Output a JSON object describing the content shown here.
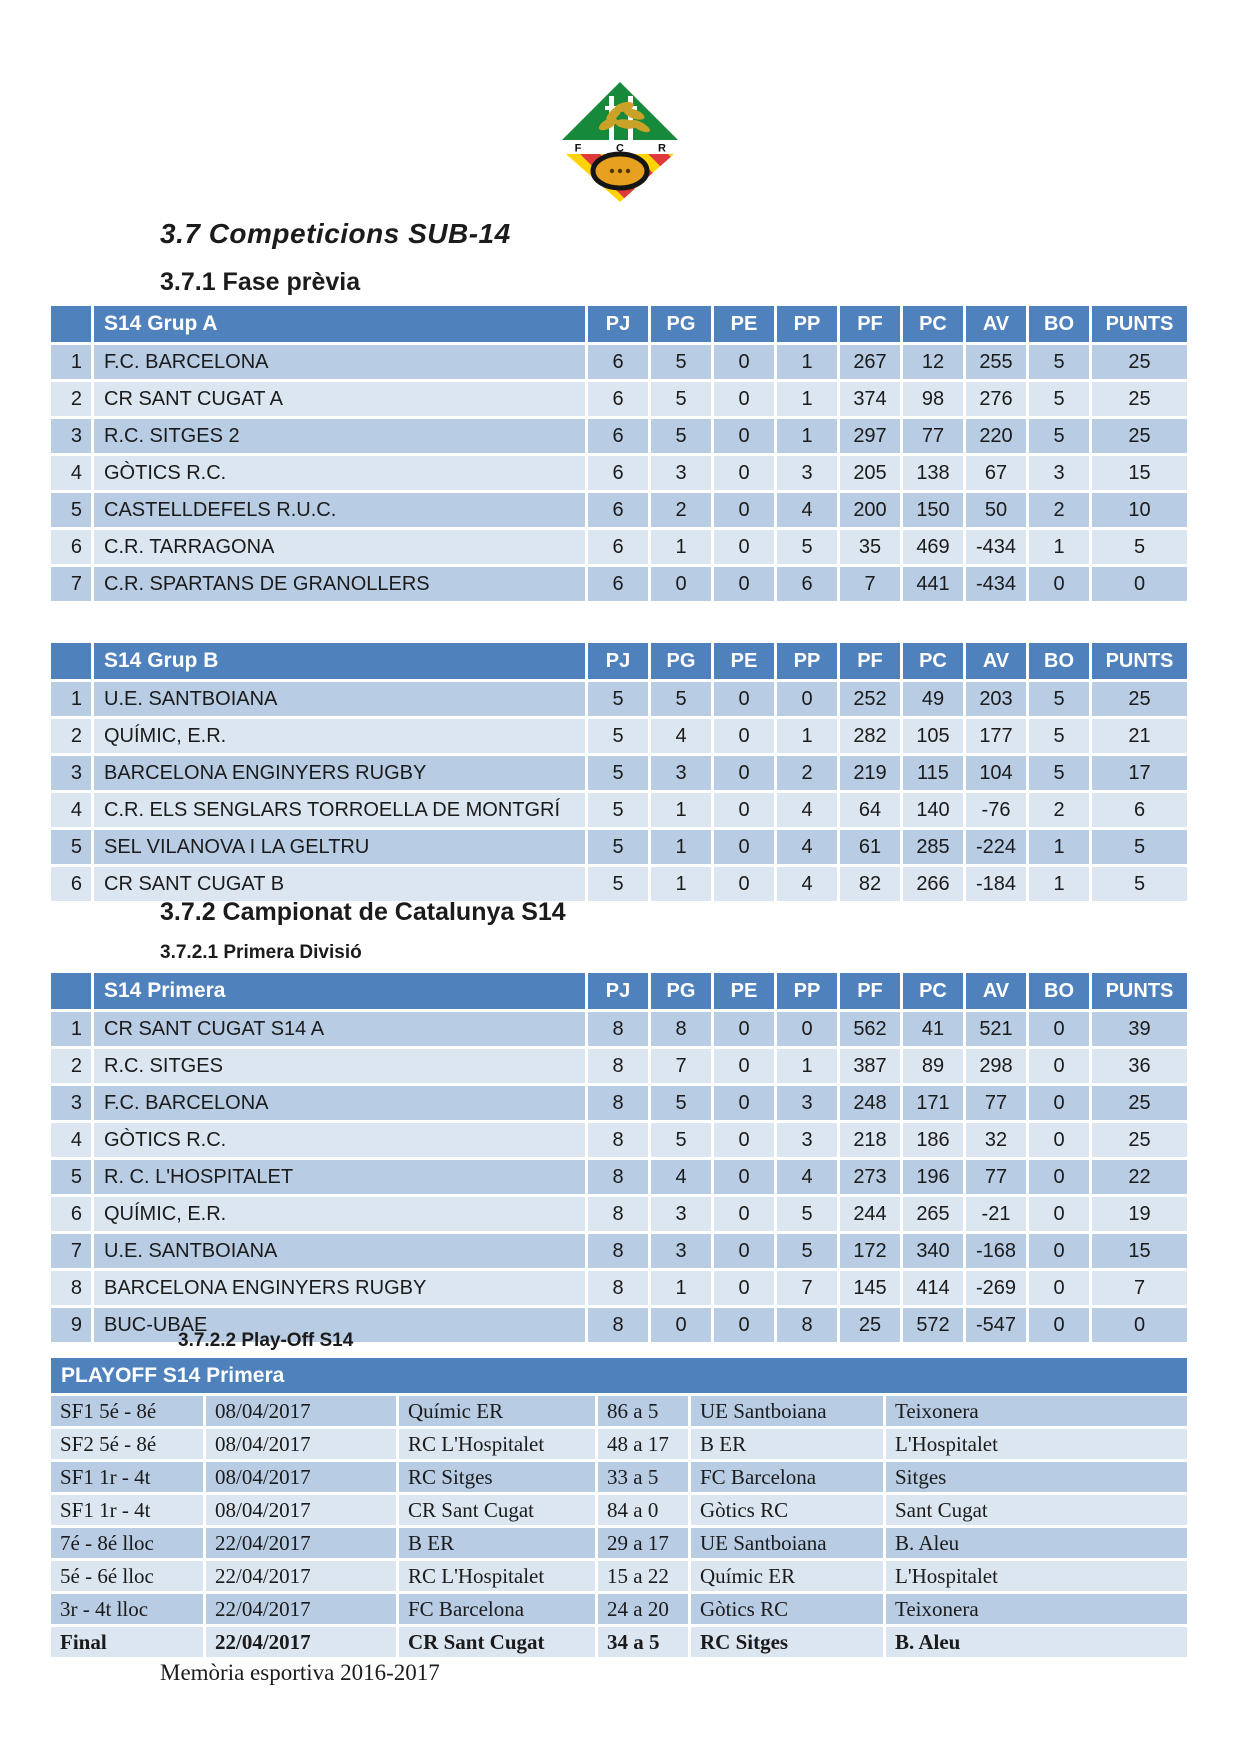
{
  "page": {
    "heading_37": "3.7 Competicions SUB-14",
    "heading_371": "3.7.1 Fase prèvia",
    "heading_372": "3.7.2 Campionat de Catalunya S14",
    "heading_3721": "3.7.2.1 Primera Divisió",
    "heading_3722": "3.7.2.2 Play-Off S14",
    "footer": "Memòria esportiva 2016-2017"
  },
  "logo": {
    "letters": [
      "F",
      "C",
      "R"
    ]
  },
  "colors": {
    "header_blue": "#4F81BD",
    "row_dark": "#B8CCE4",
    "row_light": "#DCE6F1",
    "logo_green": "#168A3A",
    "logo_yellow": "#FFD400",
    "logo_red": "#DE3A3C",
    "ball_orange": "#E8A020"
  },
  "standings": {
    "columns": [
      "PJ",
      "PG",
      "PE",
      "PP",
      "PF",
      "PC",
      "AV",
      "BO",
      "PUNTS"
    ],
    "tables": [
      {
        "title": "S14 Grup A",
        "rows": [
          {
            "pos": 1,
            "team": "F.C. BARCELONA",
            "stats": [
              6,
              5,
              0,
              1,
              267,
              12,
              255,
              5,
              25
            ]
          },
          {
            "pos": 2,
            "team": "CR SANT CUGAT A",
            "stats": [
              6,
              5,
              0,
              1,
              374,
              98,
              276,
              5,
              25
            ]
          },
          {
            "pos": 3,
            "team": "R.C. SITGES 2",
            "stats": [
              6,
              5,
              0,
              1,
              297,
              77,
              220,
              5,
              25
            ]
          },
          {
            "pos": 4,
            "team": "GÒTICS R.C.",
            "stats": [
              6,
              3,
              0,
              3,
              205,
              138,
              67,
              3,
              15
            ]
          },
          {
            "pos": 5,
            "team": "CASTELLDEFELS R.U.C.",
            "stats": [
              6,
              2,
              0,
              4,
              200,
              150,
              50,
              2,
              10
            ]
          },
          {
            "pos": 6,
            "team": "C.R. TARRAGONA",
            "stats": [
              6,
              1,
              0,
              5,
              35,
              469,
              -434,
              1,
              5
            ]
          },
          {
            "pos": 7,
            "team": "C.R. SPARTANS DE GRANOLLERS",
            "stats": [
              6,
              0,
              0,
              6,
              7,
              441,
              -434,
              0,
              0
            ]
          }
        ]
      },
      {
        "title": "S14 Grup B",
        "rows": [
          {
            "pos": 1,
            "team": "U.E. SANTBOIANA",
            "stats": [
              5,
              5,
              0,
              0,
              252,
              49,
              203,
              5,
              25
            ]
          },
          {
            "pos": 2,
            "team": "QUÍMIC, E.R.",
            "stats": [
              5,
              4,
              0,
              1,
              282,
              105,
              177,
              5,
              21
            ]
          },
          {
            "pos": 3,
            "team": "BARCELONA ENGINYERS RUGBY",
            "stats": [
              5,
              3,
              0,
              2,
              219,
              115,
              104,
              5,
              17
            ]
          },
          {
            "pos": 4,
            "team": "C.R. ELS SENGLARS TORROELLA DE MONTGRÍ",
            "stats": [
              5,
              1,
              0,
              4,
              64,
              140,
              -76,
              2,
              6
            ]
          },
          {
            "pos": 5,
            "team": "SEL VILANOVA I LA GELTRU",
            "stats": [
              5,
              1,
              0,
              4,
              61,
              285,
              -224,
              1,
              5
            ]
          },
          {
            "pos": 6,
            "team": "CR SANT CUGAT B",
            "stats": [
              5,
              1,
              0,
              4,
              82,
              266,
              -184,
              1,
              5
            ]
          }
        ]
      },
      {
        "title": "S14 Primera",
        "rows": [
          {
            "pos": 1,
            "team": "CR SANT CUGAT S14 A",
            "stats": [
              8,
              8,
              0,
              0,
              562,
              41,
              521,
              0,
              39
            ]
          },
          {
            "pos": 2,
            "team": "R.C. SITGES",
            "stats": [
              8,
              7,
              0,
              1,
              387,
              89,
              298,
              0,
              36
            ]
          },
          {
            "pos": 3,
            "team": "F.C. BARCELONA",
            "stats": [
              8,
              5,
              0,
              3,
              248,
              171,
              77,
              0,
              25
            ]
          },
          {
            "pos": 4,
            "team": "GÒTICS R.C.",
            "stats": [
              8,
              5,
              0,
              3,
              218,
              186,
              32,
              0,
              25
            ]
          },
          {
            "pos": 5,
            "team": "R. C. L'HOSPITALET",
            "stats": [
              8,
              4,
              0,
              4,
              273,
              196,
              77,
              0,
              22
            ]
          },
          {
            "pos": 6,
            "team": "QUÍMIC, E.R.",
            "stats": [
              8,
              3,
              0,
              5,
              244,
              265,
              -21,
              0,
              19
            ]
          },
          {
            "pos": 7,
            "team": "U.E. SANTBOIANA",
            "stats": [
              8,
              3,
              0,
              5,
              172,
              340,
              -168,
              0,
              15
            ]
          },
          {
            "pos": 8,
            "team": "BARCELONA ENGINYERS RUGBY",
            "stats": [
              8,
              1,
              0,
              7,
              145,
              414,
              -269,
              0,
              7
            ]
          },
          {
            "pos": 9,
            "team": "BUC-UBAE",
            "stats": [
              8,
              0,
              0,
              8,
              25,
              572,
              -547,
              0,
              0
            ]
          }
        ]
      }
    ]
  },
  "playoff": {
    "title": "PLAYOFF S14 Primera",
    "rows": [
      {
        "match": "SF1 5é - 8é",
        "date": "08/04/2017",
        "home": "Químic ER",
        "score": "86 a 5",
        "away": "UE Santboiana",
        "venue": "Teixonera",
        "bold": false
      },
      {
        "match": "SF2 5é - 8é",
        "date": "08/04/2017",
        "home": "RC L'Hospitalet",
        "score": "48 a 17",
        "away": "B ER",
        "venue": "L'Hospitalet",
        "bold": false
      },
      {
        "match": "SF1 1r - 4t",
        "date": "08/04/2017",
        "home": "RC Sitges",
        "score": "33 a 5",
        "away": "FC Barcelona",
        "venue": "Sitges",
        "bold": false
      },
      {
        "match": "SF1 1r - 4t",
        "date": "08/04/2017",
        "home": "CR Sant Cugat",
        "score": "84 a 0",
        "away": "Gòtics RC",
        "venue": "Sant Cugat",
        "bold": false
      },
      {
        "match": "7é - 8é lloc",
        "date": "22/04/2017",
        "home": "B ER",
        "score": "29 a 17",
        "away": "UE Santboiana",
        "venue": "B. Aleu",
        "bold": false
      },
      {
        "match": "5é - 6é lloc",
        "date": "22/04/2017",
        "home": "RC L'Hospitalet",
        "score": "15 a 22",
        "away": "Químic ER",
        "venue": "L'Hospitalet",
        "bold": false
      },
      {
        "match": "3r - 4t lloc",
        "date": "22/04/2017",
        "home": "FC Barcelona",
        "score": "24 a 20",
        "away": "Gòtics RC",
        "venue": "Teixonera",
        "bold": false
      },
      {
        "match": "Final",
        "date": "22/04/2017",
        "home": "CR Sant Cugat",
        "score": "34 a 5",
        "away": "RC Sitges",
        "venue": "B. Aleu",
        "bold": true
      }
    ]
  }
}
